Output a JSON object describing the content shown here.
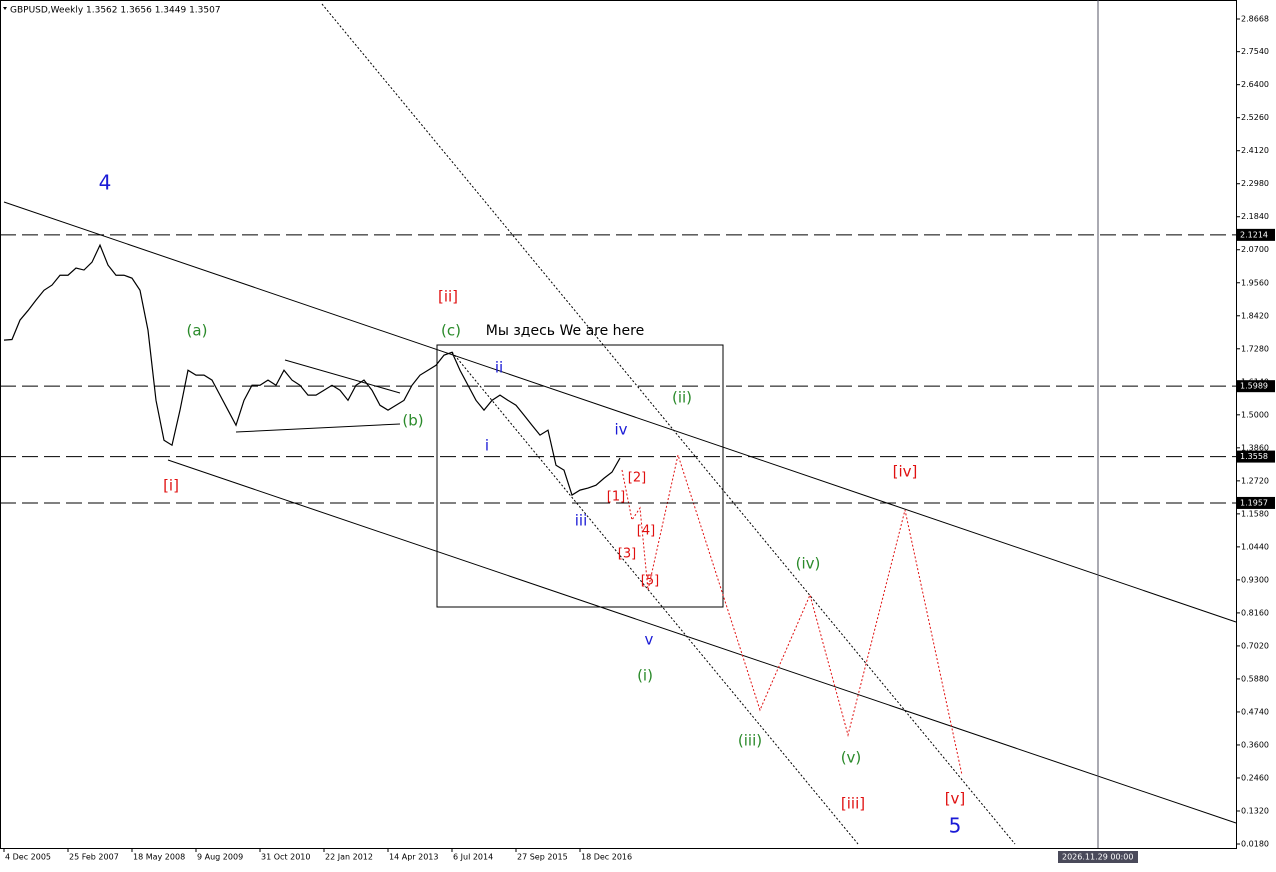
{
  "chart_data": {
    "type": "line",
    "title": "GBPUSD,Weekly  1.3562 1.3656 1.3449 1.3507",
    "color": "#000000",
    "categories": [
      "4 Dec 2005",
      null,
      null,
      null,
      null,
      null,
      null,
      null,
      "25 Feb 2007",
      null,
      null,
      null,
      null,
      null,
      null,
      null,
      "18 May 2008",
      null,
      null,
      null,
      null,
      null,
      null,
      null,
      "9 Aug 2009",
      null,
      null,
      null,
      null,
      null,
      null,
      null,
      "31 Oct 2010",
      null,
      null,
      null,
      null,
      null,
      null,
      null,
      "22 Jan 2012",
      null,
      null,
      null,
      null,
      null,
      null,
      null,
      "14 Apr 2013",
      null,
      null,
      null,
      null,
      null,
      null,
      null,
      "6 Jul 2014",
      null,
      null,
      null,
      null,
      null,
      null,
      null,
      "27 Sep 2015",
      null,
      null,
      null,
      null,
      null,
      null,
      null,
      "18 Dec 2016",
      null,
      null,
      null,
      null,
      null
    ],
    "values": [
      1.758,
      1.76,
      1.827,
      1.86,
      1.896,
      1.93,
      1.948,
      1.982,
      1.982,
      2.007,
      2.0,
      2.027,
      2.086,
      2.017,
      1.982,
      1.982,
      1.972,
      1.93,
      1.792,
      1.55,
      1.412,
      1.395,
      1.516,
      1.654,
      1.637,
      1.637,
      1.62,
      1.568,
      1.516,
      1.464,
      1.55,
      1.602,
      1.602,
      1.62,
      1.602,
      1.654,
      1.62,
      1.602,
      1.568,
      1.568,
      1.585,
      1.602,
      1.585,
      1.55,
      1.602,
      1.62,
      1.585,
      1.533,
      1.516,
      1.533,
      1.55,
      1.602,
      1.637,
      1.654,
      1.671,
      1.706,
      1.716,
      1.654,
      1.602,
      1.55,
      1.516,
      1.55,
      1.568,
      1.55,
      1.533,
      1.499,
      1.464,
      1.43,
      1.447,
      1.326,
      1.309,
      1.223,
      1.24,
      1.247,
      1.257,
      1.281,
      1.302,
      1.3507
    ],
    "ylim": [
      0.018,
      2.8668
    ],
    "yticks": [
      2.8668,
      {
        "value": 2.754,
        "label": "2.7540"
      },
      {
        "value": 2.64,
        "label": "2.6400"
      },
      {
        "value": 2.526,
        "label": "2.5260"
      },
      {
        "value": 2.412,
        "label": "2.4120"
      },
      {
        "value": 2.298,
        "label": "2.2980"
      },
      {
        "value": 2.184,
        "label": "2.1840"
      },
      {
        "value": 2.07,
        "label": "2.0700"
      },
      {
        "value": 1.956,
        "label": "1.9560"
      },
      {
        "value": 1.842,
        "label": "1.8420"
      },
      {
        "value": 1.728,
        "label": "1.7280"
      },
      {
        "value": 1.614,
        "label": "1.6140"
      },
      {
        "value": 1.5,
        "label": "1.5000"
      },
      {
        "value": 1.386,
        "label": "1.3860"
      },
      {
        "value": 1.272,
        "label": "1.2720"
      },
      {
        "value": 1.158,
        "label": "1.1580"
      },
      {
        "value": 1.044,
        "label": "1.0440"
      },
      {
        "value": 0.93,
        "label": "0.9300"
      },
      {
        "value": 0.816,
        "label": "0.8160"
      },
      {
        "value": 0.702,
        "label": "0.7020"
      },
      {
        "value": 0.588,
        "label": "0.5880"
      },
      {
        "value": 0.474,
        "label": "0.4740"
      },
      {
        "value": 0.36,
        "label": "0.3600"
      },
      {
        "value": 0.246,
        "label": "0.2460"
      },
      {
        "value": 0.132,
        "label": "0.1320"
      },
      {
        "value": 0.018,
        "label": "0.0180"
      }
    ],
    "levels": [
      2.1214,
      1.5989,
      1.3558,
      1.1957
    ],
    "cursor_label": "2026.11.29 00:00",
    "annotations": [
      {
        "text": "4",
        "color": "#1a1ad6"
      },
      {
        "text": "[ii]",
        "color": "#e01010"
      },
      {
        "text": "(a)",
        "color": "#2a8a2a"
      },
      {
        "text": "(c)",
        "color": "#2a8a2a"
      },
      {
        "text": "Мы здесь We are here",
        "color": "#000000"
      },
      {
        "text": "ii",
        "color": "#1a1ad6"
      },
      {
        "text": "(b)",
        "color": "#2a8a2a"
      },
      {
        "text": "(ii)",
        "color": "#2a8a2a"
      },
      {
        "text": "iv",
        "color": "#1a1ad6"
      },
      {
        "text": "i",
        "color": "#1a1ad6"
      },
      {
        "text": "[iv]",
        "color": "#e01010"
      },
      {
        "text": "[2]",
        "color": "#e01010"
      },
      {
        "text": "[i]",
        "color": "#e01010"
      },
      {
        "text": "[1]",
        "color": "#e01010"
      },
      {
        "text": "iii",
        "color": "#1a1ad6"
      },
      {
        "text": "[4]",
        "color": "#e01010"
      },
      {
        "text": "[3]",
        "color": "#e01010"
      },
      {
        "text": "(iv)",
        "color": "#2a8a2a"
      },
      {
        "text": "[5]",
        "color": "#e01010"
      },
      {
        "text": "v",
        "color": "#1a1ad6"
      },
      {
        "text": "(i)",
        "color": "#2a8a2a"
      },
      {
        "text": "(iii)",
        "color": "#2a8a2a"
      },
      {
        "text": "(v)",
        "color": "#2a8a2a"
      },
      {
        "text": "[v]",
        "color": "#e01010"
      },
      {
        "text": "[iii]",
        "color": "#e01010"
      },
      {
        "text": "5",
        "color": "#1a1ad6"
      }
    ]
  }
}
